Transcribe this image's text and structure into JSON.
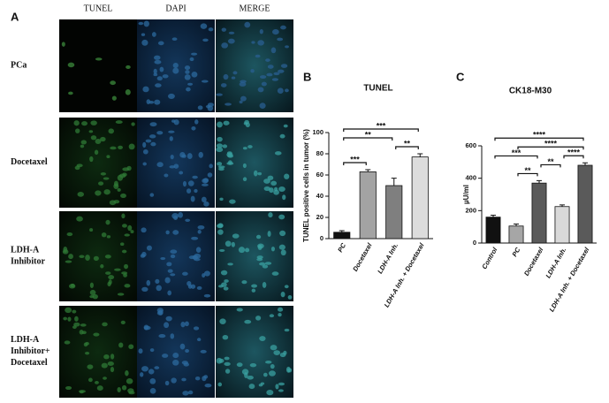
{
  "figure_a": {
    "label": "A",
    "columns": [
      "TUNEL",
      "DAPI",
      "MERGE"
    ],
    "rows": [
      "PCa",
      "Docetaxel",
      "LDH-A Inhibitor",
      "LDH-A Inhibitor+ Docetaxel"
    ]
  },
  "chart_data": [
    {
      "type": "bar",
      "panel": "B",
      "title": "TUNEL",
      "y_label": "TUNEL positive cells in tumor (%)",
      "categories": [
        "PC",
        "Docetaxel",
        "LDH-A Inh.",
        "LDH-A Inh. + Docetaxel"
      ],
      "values": [
        6,
        63,
        50,
        77
      ],
      "errors": [
        1.5,
        2,
        7,
        3
      ],
      "colors": [
        "#111111",
        "#a3a3a3",
        "#7f7f7f",
        "#dcdcdc"
      ],
      "ylim": [
        0,
        100
      ],
      "yticks": [
        0,
        20,
        40,
        60,
        80,
        100
      ],
      "annotations": [
        {
          "text": "***",
          "between": [
            "PC",
            "Docetaxel"
          ]
        },
        {
          "text": "**",
          "between": [
            "PC",
            "LDH-A Inh."
          ]
        },
        {
          "text": "**",
          "between": [
            "LDH-A Inh.",
            "LDH-A Inh. + Docetaxel"
          ]
        },
        {
          "text": "***",
          "between": [
            "PC",
            "LDH-A Inh. + Docetaxel"
          ]
        }
      ]
    },
    {
      "type": "bar",
      "panel": "C",
      "title": "CK18-M30",
      "y_label": "µU/ml",
      "categories": [
        "Control",
        "PC",
        "Docetaxel",
        "LDH-A Inh.",
        "LDH-A Inh. + Docetaxel"
      ],
      "values": [
        160,
        105,
        370,
        225,
        480
      ],
      "errors": [
        12,
        12,
        15,
        10,
        15
      ],
      "colors": [
        "#111111",
        "#a6a6a6",
        "#5a5a5a",
        "#d9d9d9",
        "#5a5a5a"
      ],
      "ylim": [
        0,
        600
      ],
      "yticks": [
        0,
        200,
        400,
        600
      ],
      "annotations": [
        {
          "text": "**",
          "between": [
            "PC",
            "Docetaxel"
          ]
        },
        {
          "text": "**",
          "between": [
            "Docetaxel",
            "LDH-A Inh."
          ]
        },
        {
          "text": "****",
          "between": [
            "LDH-A Inh.",
            "LDH-A Inh. + Docetaxel"
          ]
        },
        {
          "text": "***",
          "between": [
            "Control",
            "Docetaxel"
          ]
        },
        {
          "text": "****",
          "between": [
            "PC",
            "LDH-A Inh. + Docetaxel"
          ]
        },
        {
          "text": "****",
          "between": [
            "Control",
            "LDH-A Inh. + Docetaxel"
          ]
        }
      ]
    }
  ]
}
